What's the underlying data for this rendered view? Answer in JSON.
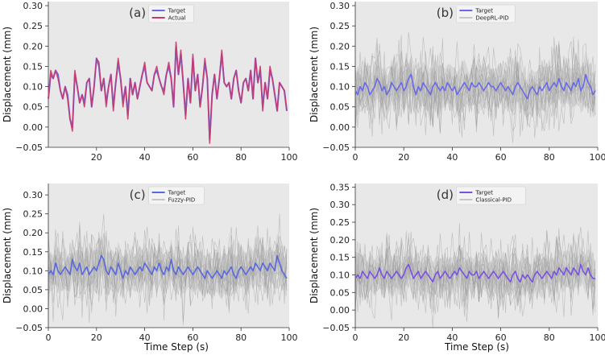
{
  "figure": {
    "xlabel_shared": "Time Step (s)"
  },
  "chart_data": [
    {
      "type": "line",
      "panel_label": "(a)",
      "xlabel": "",
      "ylabel": "Displacement (mm)",
      "xlim": [
        0,
        100
      ],
      "ylim": [
        -0.05,
        0.31
      ],
      "xticks": [
        20,
        40,
        60,
        80,
        100
      ],
      "yticks": [
        -0.05,
        0.0,
        0.05,
        0.1,
        0.15,
        0.2,
        0.25,
        0.3
      ],
      "legend": [
        "Target",
        "Actual"
      ],
      "legend_position": "top-center",
      "colors": {
        "target": "#6a6ae8",
        "actual": "#c8386e"
      },
      "target_series": [
        0.07,
        0.13,
        0.12,
        0.14,
        0.13,
        0.09,
        0.07,
        0.1,
        0.08,
        0.02,
        0.0,
        0.13,
        0.1,
        0.06,
        0.08,
        0.06,
        0.11,
        0.12,
        0.05,
        0.1,
        0.17,
        0.15,
        0.09,
        0.12,
        0.06,
        0.1,
        0.13,
        0.05,
        0.11,
        0.16,
        0.12,
        0.06,
        0.1,
        0.03,
        0.12,
        0.08,
        0.11,
        0.07,
        0.1,
        0.13,
        0.15,
        0.11,
        0.1,
        0.09,
        0.13,
        0.14,
        0.12,
        0.1,
        0.09,
        0.13,
        0.15,
        0.12,
        0.05,
        0.2,
        0.13,
        0.18,
        0.11,
        0.03,
        0.12,
        0.06,
        0.17,
        0.09,
        0.13,
        0.05,
        0.1,
        0.16,
        0.12,
        -0.03,
        0.08,
        0.13,
        0.07,
        0.12,
        0.18,
        0.11,
        0.1,
        0.11,
        0.07,
        0.12,
        0.14,
        0.09,
        0.06,
        0.11,
        0.12,
        0.09,
        0.14,
        0.07,
        0.17,
        0.11,
        0.14,
        0.05,
        0.11,
        0.07,
        0.14,
        0.12,
        0.08,
        0.04,
        0.11,
        0.1,
        0.09,
        0.04
      ],
      "actual_series": [
        0.07,
        0.14,
        0.12,
        0.14,
        0.12,
        0.09,
        0.07,
        0.1,
        0.07,
        0.02,
        -0.01,
        0.14,
        0.1,
        0.06,
        0.08,
        0.05,
        0.11,
        0.12,
        0.05,
        0.1,
        0.17,
        0.16,
        0.09,
        0.12,
        0.05,
        0.1,
        0.13,
        0.04,
        0.11,
        0.17,
        0.12,
        0.05,
        0.1,
        0.02,
        0.12,
        0.08,
        0.11,
        0.07,
        0.1,
        0.13,
        0.16,
        0.11,
        0.1,
        0.09,
        0.13,
        0.15,
        0.12,
        0.1,
        0.08,
        0.13,
        0.16,
        0.12,
        0.05,
        0.21,
        0.13,
        0.19,
        0.11,
        0.02,
        0.12,
        0.06,
        0.18,
        0.09,
        0.13,
        0.05,
        0.1,
        0.17,
        0.12,
        -0.04,
        0.08,
        0.13,
        0.07,
        0.12,
        0.19,
        0.11,
        0.1,
        0.11,
        0.07,
        0.12,
        0.14,
        0.09,
        0.06,
        0.11,
        0.12,
        0.09,
        0.14,
        0.07,
        0.17,
        0.11,
        0.15,
        0.04,
        0.11,
        0.07,
        0.15,
        0.12,
        0.08,
        0.04,
        0.11,
        0.1,
        0.09,
        0.04
      ]
    },
    {
      "type": "line",
      "panel_label": "(b)",
      "xlabel": "",
      "ylabel": "Displacement (mm)",
      "xlim": [
        0,
        100
      ],
      "ylim": [
        -0.05,
        0.31
      ],
      "xticks": [
        0,
        20,
        40,
        60,
        80,
        100
      ],
      "yticks": [
        -0.05,
        0.0,
        0.05,
        0.1,
        0.15,
        0.2,
        0.25,
        0.3
      ],
      "legend": [
        "Target",
        "DeepRL-PID"
      ],
      "legend_position": "top-center",
      "colors": {
        "target": "#6a6ae8",
        "controller": "#aaaaaa"
      },
      "target_series": [
        0.09,
        0.08,
        0.1,
        0.09,
        0.11,
        0.1,
        0.08,
        0.09,
        0.1,
        0.12,
        0.11,
        0.09,
        0.1,
        0.08,
        0.09,
        0.11,
        0.1,
        0.09,
        0.1,
        0.11,
        0.09,
        0.1,
        0.12,
        0.13,
        0.1,
        0.08,
        0.1,
        0.09,
        0.11,
        0.1,
        0.09,
        0.08,
        0.1,
        0.11,
        0.1,
        0.09,
        0.1,
        0.09,
        0.11,
        0.1,
        0.09,
        0.1,
        0.08,
        0.09,
        0.1,
        0.11,
        0.1,
        0.09,
        0.11,
        0.1,
        0.1,
        0.11,
        0.1,
        0.09,
        0.1,
        0.11,
        0.1,
        0.1,
        0.09,
        0.1,
        0.11,
        0.1,
        0.09,
        0.1,
        0.09,
        0.08,
        0.1,
        0.11,
        0.1,
        0.09,
        0.08,
        0.07,
        0.09,
        0.1,
        0.09,
        0.08,
        0.1,
        0.09,
        0.1,
        0.11,
        0.09,
        0.1,
        0.11,
        0.1,
        0.12,
        0.1,
        0.09,
        0.11,
        0.1,
        0.09,
        0.11,
        0.1,
        0.12,
        0.09,
        0.1,
        0.13,
        0.11,
        0.1,
        0.08,
        0.09
      ]
    },
    {
      "type": "line",
      "panel_label": "(c)",
      "xlabel": "Time Step (s)",
      "ylabel": "Displacement (mm)",
      "xlim": [
        0,
        100
      ],
      "ylim": [
        -0.05,
        0.33
      ],
      "xticks": [
        0,
        20,
        40,
        60,
        80,
        100
      ],
      "yticks": [
        -0.05,
        0.0,
        0.05,
        0.1,
        0.15,
        0.2,
        0.25,
        0.3
      ],
      "legend": [
        "Target",
        "Fuzzy-PID"
      ],
      "legend_position": "top-center",
      "colors": {
        "target": "#5a68e0",
        "controller": "#aaaaaa"
      },
      "target_series": [
        0.09,
        0.1,
        0.09,
        0.12,
        0.1,
        0.09,
        0.1,
        0.11,
        0.1,
        0.09,
        0.13,
        0.11,
        0.1,
        0.12,
        0.09,
        0.1,
        0.11,
        0.09,
        0.1,
        0.11,
        0.1,
        0.12,
        0.14,
        0.13,
        0.1,
        0.09,
        0.11,
        0.1,
        0.09,
        0.12,
        0.1,
        0.08,
        0.1,
        0.09,
        0.11,
        0.1,
        0.09,
        0.1,
        0.11,
        0.1,
        0.12,
        0.11,
        0.1,
        0.09,
        0.11,
        0.1,
        0.12,
        0.1,
        0.09,
        0.11,
        0.1,
        0.13,
        0.1,
        0.09,
        0.11,
        0.1,
        0.09,
        0.1,
        0.11,
        0.1,
        0.09,
        0.1,
        0.11,
        0.1,
        0.09,
        0.08,
        0.1,
        0.09,
        0.08,
        0.09,
        0.1,
        0.09,
        0.08,
        0.1,
        0.09,
        0.1,
        0.11,
        0.09,
        0.08,
        0.1,
        0.11,
        0.1,
        0.09,
        0.1,
        0.11,
        0.1,
        0.12,
        0.11,
        0.1,
        0.12,
        0.11,
        0.1,
        0.12,
        0.11,
        0.1,
        0.14,
        0.12,
        0.1,
        0.09,
        0.08
      ]
    },
    {
      "type": "line",
      "panel_label": "(d)",
      "xlabel": "Time Step (s)",
      "ylabel": "Displacement (mm)",
      "xlim": [
        0,
        100
      ],
      "ylim": [
        -0.05,
        0.36
      ],
      "xticks": [
        0,
        20,
        40,
        60,
        80,
        100
      ],
      "yticks": [
        -0.05,
        0.0,
        0.05,
        0.1,
        0.15,
        0.2,
        0.25,
        0.3,
        0.35
      ],
      "legend": [
        "Target",
        "Classical-PID"
      ],
      "legend_position": "top-center",
      "colors": {
        "target": "#7a52e0",
        "controller": "#aaaaaa"
      },
      "target_series": [
        0.09,
        0.1,
        0.09,
        0.11,
        0.1,
        0.09,
        0.11,
        0.1,
        0.09,
        0.1,
        0.12,
        0.1,
        0.09,
        0.11,
        0.1,
        0.09,
        0.1,
        0.11,
        0.1,
        0.09,
        0.1,
        0.12,
        0.13,
        0.11,
        0.09,
        0.1,
        0.11,
        0.09,
        0.1,
        0.11,
        0.1,
        0.09,
        0.08,
        0.1,
        0.11,
        0.09,
        0.1,
        0.11,
        0.1,
        0.09,
        0.1,
        0.11,
        0.1,
        0.12,
        0.11,
        0.1,
        0.09,
        0.11,
        0.1,
        0.1,
        0.11,
        0.09,
        0.1,
        0.11,
        0.1,
        0.09,
        0.1,
        0.11,
        0.1,
        0.09,
        0.1,
        0.11,
        0.1,
        0.09,
        0.08,
        0.1,
        0.11,
        0.09,
        0.08,
        0.1,
        0.09,
        0.1,
        0.09,
        0.08,
        0.1,
        0.11,
        0.1,
        0.09,
        0.1,
        0.11,
        0.1,
        0.09,
        0.11,
        0.1,
        0.12,
        0.11,
        0.1,
        0.12,
        0.11,
        0.1,
        0.12,
        0.11,
        0.1,
        0.13,
        0.11,
        0.1,
        0.12,
        0.1,
        0.09,
        0.09
      ]
    }
  ]
}
